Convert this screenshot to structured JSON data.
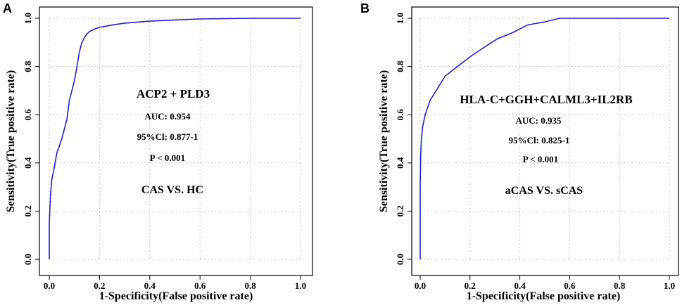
{
  "chart_data": [
    {
      "type": "line",
      "panel_label": "A",
      "xlabel": "1-Specificity(False positive rate)",
      "ylabel": "Sensitivity(True positive rate)",
      "xlim": [
        0,
        1
      ],
      "ylim": [
        0,
        1
      ],
      "xticks": [
        "0.0",
        "0.2",
        "0.4",
        "0.6",
        "0.8",
        "1.0"
      ],
      "yticks": [
        "0.0",
        "0.2",
        "0.4",
        "0.6",
        "0.8",
        "1.0"
      ],
      "grid": true,
      "line_color": "#1f1fd6",
      "series": [
        {
          "name": "ACP2 + PLD3",
          "x": [
            0,
            0,
            0.005,
            0.01,
            0.02,
            0.03,
            0.05,
            0.07,
            0.08,
            0.1,
            0.11,
            0.12,
            0.13,
            0.14,
            0.15,
            0.16,
            0.18,
            0.2,
            0.25,
            0.3,
            0.4,
            0.5,
            0.6,
            0.8,
            1.0
          ],
          "y": [
            0,
            0.15,
            0.27,
            0.33,
            0.38,
            0.44,
            0.5,
            0.58,
            0.66,
            0.74,
            0.8,
            0.86,
            0.9,
            0.92,
            0.935,
            0.945,
            0.955,
            0.962,
            0.972,
            0.98,
            0.988,
            0.993,
            0.997,
            1.0,
            1.0
          ]
        }
      ],
      "annotations": {
        "title": "ACP2 + PLD3",
        "auc": "AUC: 0.954",
        "ci": "95%Cl: 0.877-1",
        "p": "P < 0.001",
        "comparison": "CAS VS. HC"
      }
    },
    {
      "type": "line",
      "panel_label": "B",
      "xlabel": "1-Specificity(False positive rate)",
      "ylabel": "Sensitivity(True positive rate)",
      "xlim": [
        0,
        1
      ],
      "ylim": [
        0,
        1
      ],
      "xticks": [
        "0.0",
        "0.2",
        "0.4",
        "0.6",
        "0.8",
        "1.0"
      ],
      "yticks": [
        "0.0",
        "0.2",
        "0.4",
        "0.6",
        "0.8",
        "1.0"
      ],
      "grid": true,
      "line_color": "#1f1fd6",
      "series": [
        {
          "name": "HLA-C+GGH+CALML3+IL2RB",
          "x": [
            0,
            0,
            0.002,
            0.005,
            0.01,
            0.02,
            0.04,
            0.07,
            0.1,
            0.15,
            0.2,
            0.25,
            0.31,
            0.37,
            0.43,
            0.5,
            0.56,
            0.7,
            1.0
          ],
          "y": [
            0,
            0.3,
            0.43,
            0.5,
            0.55,
            0.6,
            0.66,
            0.71,
            0.76,
            0.8,
            0.84,
            0.875,
            0.915,
            0.94,
            0.972,
            0.985,
            1.0,
            1.0,
            1.0
          ]
        }
      ],
      "annotations": {
        "title": "HLA-C+GGH+CALML3+IL2RB",
        "auc": "AUC: 0.935",
        "ci": "95%Cl: 0.825-1",
        "p": "P < 0.001",
        "comparison": "aCAS VS. sCAS"
      }
    }
  ]
}
